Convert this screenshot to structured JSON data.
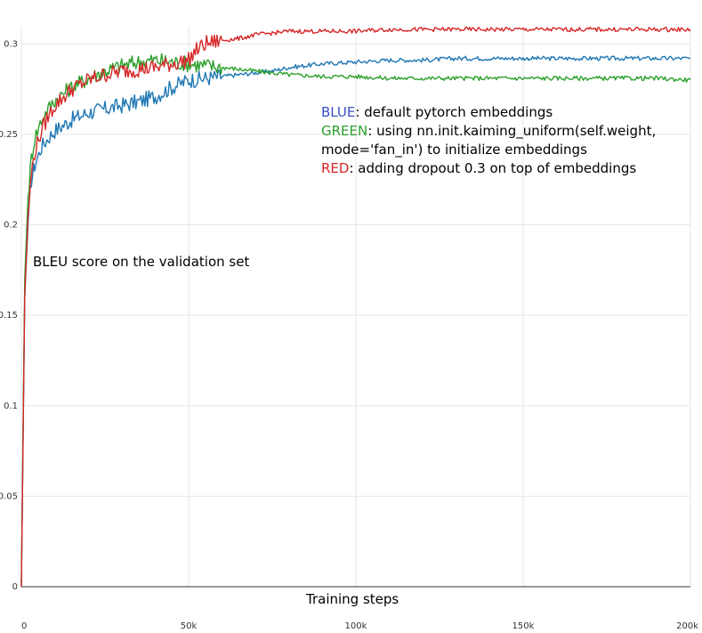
{
  "chart_data": {
    "type": "line",
    "xlabel": "Training steps",
    "annotation": "BLEU score on the validation set",
    "xlim": [
      0,
      200000
    ],
    "ylim": [
      0,
      0.31
    ],
    "x_ticks": [
      0,
      50000,
      100000,
      150000,
      200000
    ],
    "x_tick_labels": [
      "0",
      "50k",
      "100k",
      "150k",
      "200k"
    ],
    "y_ticks": [
      0,
      0.05,
      0.1,
      0.15,
      0.2,
      0.25,
      0.3
    ],
    "y_tick_labels": [
      "0",
      "0.05",
      "0.1",
      "0.15",
      "0.2",
      "0.25",
      "0.3"
    ],
    "grid": true,
    "series": [
      {
        "name": "BLUE",
        "description": "default pytorch embeddings",
        "color": "#1f77b4",
        "x": [
          0,
          1000,
          2000,
          3000,
          4000,
          6000,
          8000,
          10000,
          15000,
          20000,
          25000,
          30000,
          35000,
          40000,
          45000,
          50000,
          55000,
          60000,
          65000,
          70000,
          75000,
          80000,
          90000,
          100000,
          110000,
          120000,
          130000,
          140000,
          150000,
          160000,
          170000,
          180000,
          190000,
          200000
        ],
        "y": [
          0,
          0.16,
          0.2,
          0.225,
          0.233,
          0.243,
          0.248,
          0.252,
          0.258,
          0.262,
          0.264,
          0.266,
          0.268,
          0.271,
          0.276,
          0.28,
          0.281,
          0.282,
          0.283,
          0.284,
          0.285,
          0.287,
          0.289,
          0.29,
          0.291,
          0.291,
          0.292,
          0.292,
          0.292,
          0.292,
          0.292,
          0.292,
          0.292,
          0.292
        ]
      },
      {
        "name": "GREEN",
        "description": "using nn.init.kaiming_uniform(self.weight, mode='fan_in') to initialize embeddings",
        "color": "#2ca02c",
        "x": [
          0,
          1000,
          2000,
          3000,
          4000,
          6000,
          8000,
          10000,
          15000,
          20000,
          25000,
          30000,
          35000,
          40000,
          45000,
          50000,
          55000,
          60000,
          65000,
          70000,
          75000,
          80000,
          90000,
          100000,
          110000,
          120000,
          130000,
          140000,
          150000,
          160000,
          170000,
          180000,
          190000,
          200000
        ],
        "y": [
          0,
          0.17,
          0.215,
          0.237,
          0.248,
          0.258,
          0.264,
          0.269,
          0.276,
          0.281,
          0.285,
          0.288,
          0.29,
          0.291,
          0.29,
          0.289,
          0.288,
          0.287,
          0.286,
          0.285,
          0.284,
          0.283,
          0.282,
          0.282,
          0.281,
          0.281,
          0.281,
          0.281,
          0.281,
          0.281,
          0.281,
          0.281,
          0.281,
          0.28
        ]
      },
      {
        "name": "RED",
        "description": "adding dropout 0.3 on top of embeddings",
        "color": "#d62728",
        "x": [
          0,
          1000,
          2000,
          3000,
          4000,
          6000,
          8000,
          10000,
          15000,
          20000,
          25000,
          30000,
          35000,
          40000,
          45000,
          50000,
          52000,
          55000,
          60000,
          65000,
          70000,
          75000,
          80000,
          90000,
          100000,
          110000,
          120000,
          130000,
          140000,
          150000,
          160000,
          170000,
          180000,
          190000,
          200000
        ],
        "y": [
          0,
          0.16,
          0.205,
          0.228,
          0.24,
          0.252,
          0.26,
          0.266,
          0.275,
          0.28,
          0.283,
          0.285,
          0.286,
          0.287,
          0.289,
          0.291,
          0.296,
          0.3,
          0.302,
          0.303,
          0.305,
          0.306,
          0.307,
          0.307,
          0.307,
          0.308,
          0.308,
          0.308,
          0.308,
          0.308,
          0.308,
          0.308,
          0.308,
          0.308,
          0.308
        ]
      }
    ]
  }
}
